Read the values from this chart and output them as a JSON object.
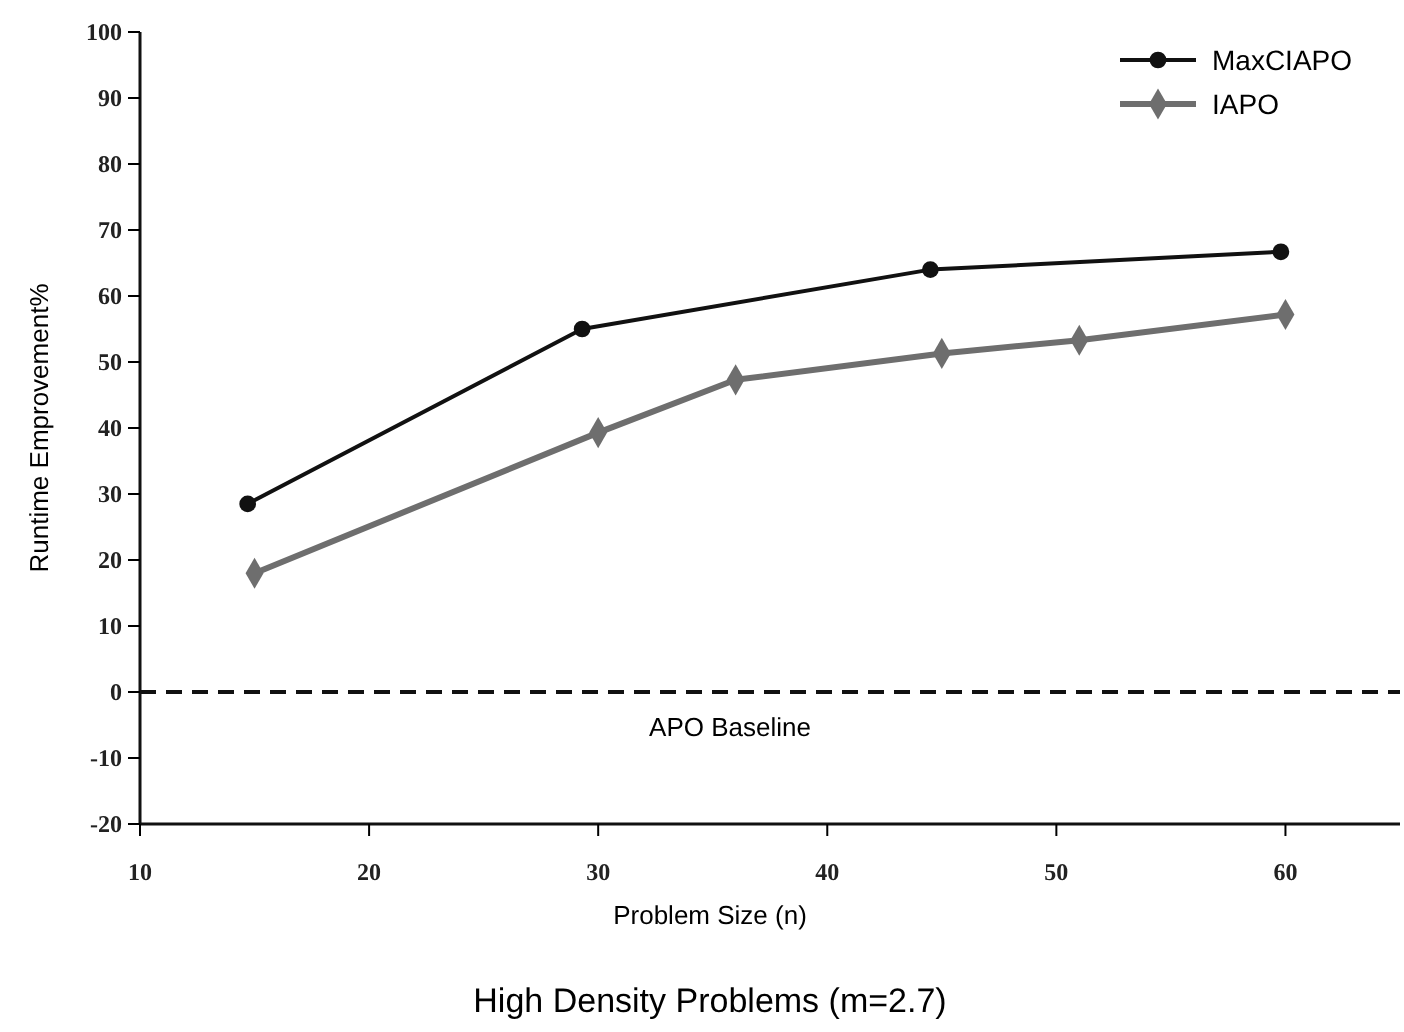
{
  "chart_data": {
    "type": "line",
    "title": "High Density Problems (m=2.7)",
    "xlabel": "Problem Size (n)",
    "ylabel": "Runtime Emprovement%",
    "series": [
      {
        "name": "MaxCIAPO",
        "color": "#111111",
        "marker": "circle",
        "x": [
          14.7,
          29.3,
          44.5,
          59.8
        ],
        "values": [
          28.5,
          55,
          64,
          66.7
        ]
      },
      {
        "name": "IAPO",
        "color": "#6e6e6e",
        "marker": "diamond",
        "x": [
          15,
          30,
          36,
          45,
          51,
          60
        ],
        "values": [
          18,
          39.3,
          47.3,
          51.3,
          53.3,
          57.2
        ]
      }
    ],
    "xlim": [
      10,
      65
    ],
    "xticks": [
      10,
      20,
      30,
      40,
      50,
      60
    ],
    "ylim": [
      -20,
      100
    ],
    "yticks": [
      -20,
      -10,
      0,
      10,
      20,
      30,
      40,
      50,
      60,
      70,
      80,
      90,
      100
    ],
    "ref_lines": [
      {
        "axis": "y",
        "value": 0,
        "label": "APO Baseline",
        "color": "#111111",
        "line_style": "dashed"
      }
    ],
    "grid": false,
    "legend": "top right"
  }
}
